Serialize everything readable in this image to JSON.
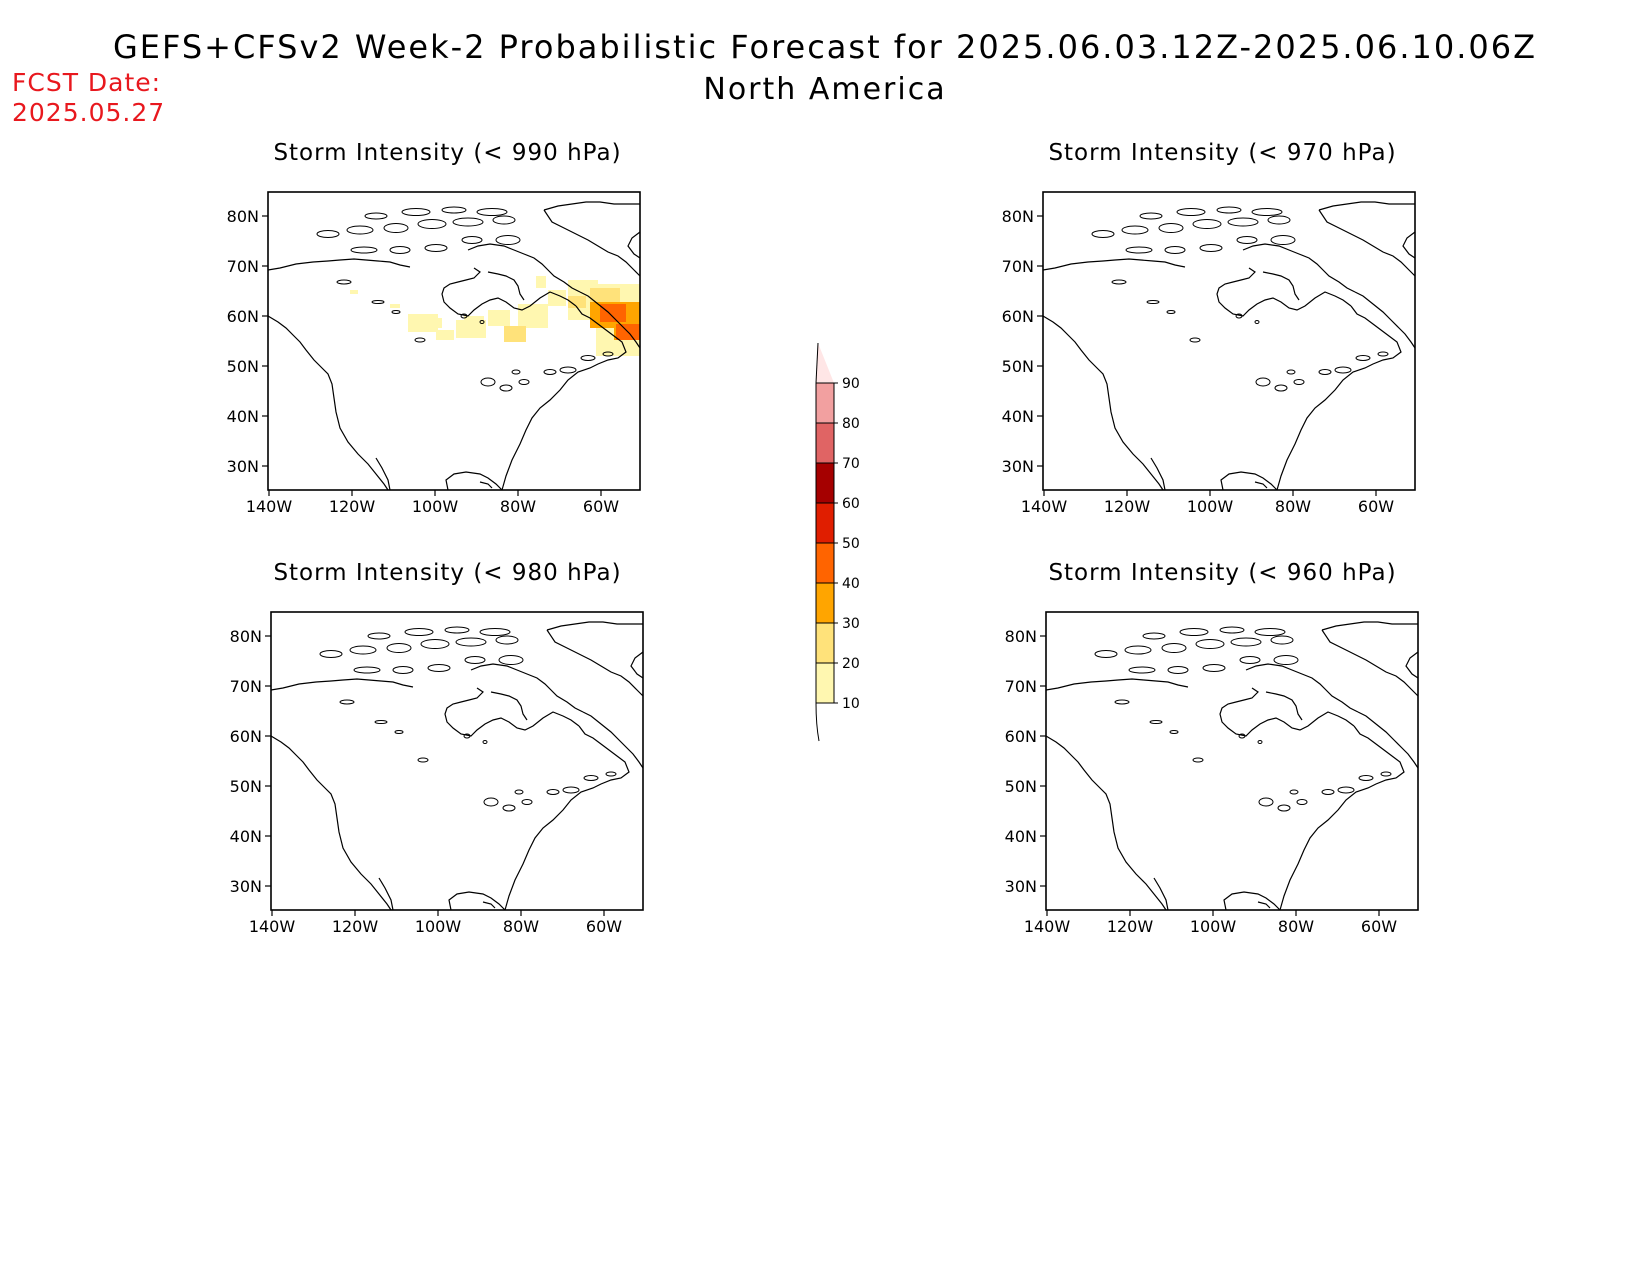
{
  "title": {
    "line1": "GEFS+CFSv2 Week-2 Probabilistic Forecast for 2025.06.03.12Z-2025.06.10.06Z",
    "line2": "North America"
  },
  "forecast_date": {
    "label": "FCST Date:",
    "value": "2025.05.27",
    "color": "#e8181e"
  },
  "panels": [
    {
      "title": "Storm Intensity (< 990 hPa)"
    },
    {
      "title": "Storm Intensity (< 970 hPa)"
    },
    {
      "title": "Storm Intensity (< 980 hPa)"
    },
    {
      "title": "Storm Intensity (< 960 hPa)"
    }
  ],
  "axes": {
    "lat_ticks": [
      "30N",
      "40N",
      "50N",
      "60N",
      "70N",
      "80N"
    ],
    "lon_ticks": [
      "140W",
      "120W",
      "100W",
      "80W",
      "60W"
    ]
  },
  "colorbar": {
    "levels": [
      "10",
      "20",
      "30",
      "40",
      "50",
      "60",
      "70",
      "80",
      "90"
    ],
    "colors": [
      "#fff7b0",
      "#ffe27a",
      "#ffa500",
      "#ff6400",
      "#e01e00",
      "#a50000",
      "#e06464",
      "#f2a0a0",
      "#ffe6e6",
      "#fff7b0"
    ]
  }
}
